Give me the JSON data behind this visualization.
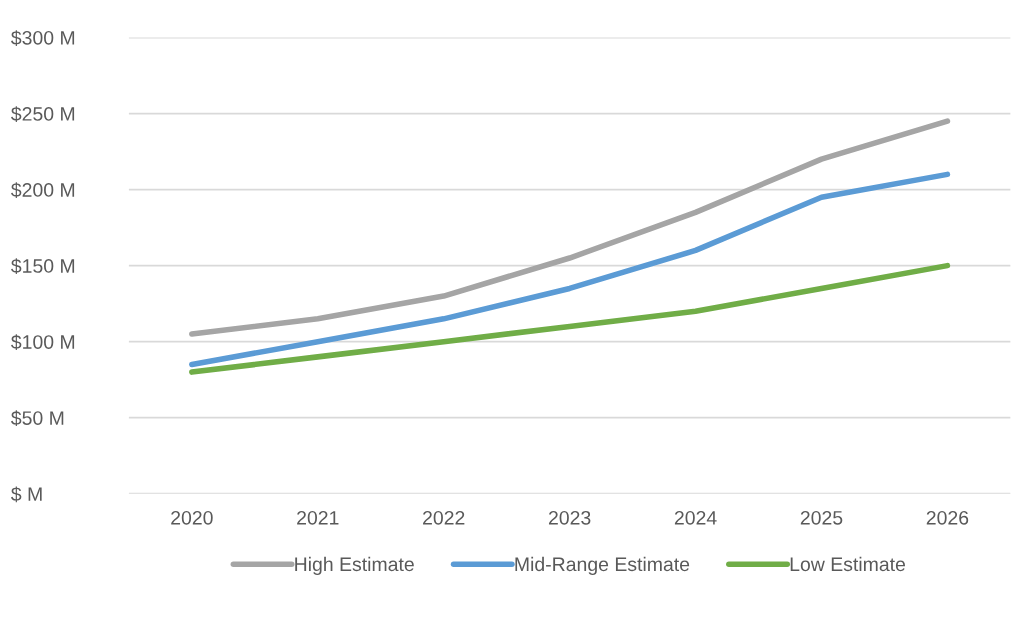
{
  "chart_data": {
    "type": "line",
    "categories": [
      "2020",
      "2021",
      "2022",
      "2023",
      "2024",
      "2025",
      "2026"
    ],
    "series": [
      {
        "name": "High Estimate",
        "color": "#a5a5a5",
        "values": [
          105,
          115,
          130,
          155,
          185,
          220,
          245
        ]
      },
      {
        "name": "Mid-Range Estimate",
        "color": "#5b9bd5",
        "values": [
          85,
          100,
          115,
          135,
          160,
          195,
          210
        ]
      },
      {
        "name": "Low Estimate",
        "color": "#70ad47",
        "values": [
          80,
          90,
          100,
          110,
          120,
          135,
          150
        ]
      }
    ],
    "ylim": [
      0,
      300
    ],
    "yticks": [
      {
        "value": 0,
        "label": "$ M"
      },
      {
        "value": 50,
        "label": "$50 M"
      },
      {
        "value": 100,
        "label": "$100 M"
      },
      {
        "value": 150,
        "label": "$150 M"
      },
      {
        "value": 200,
        "label": "$200 M"
      },
      {
        "value": 250,
        "label": "$250 M"
      },
      {
        "value": 300,
        "label": "$300 M"
      }
    ],
    "grid": "y",
    "legend": "bottom",
    "marker": "none",
    "line_style": "solid"
  }
}
